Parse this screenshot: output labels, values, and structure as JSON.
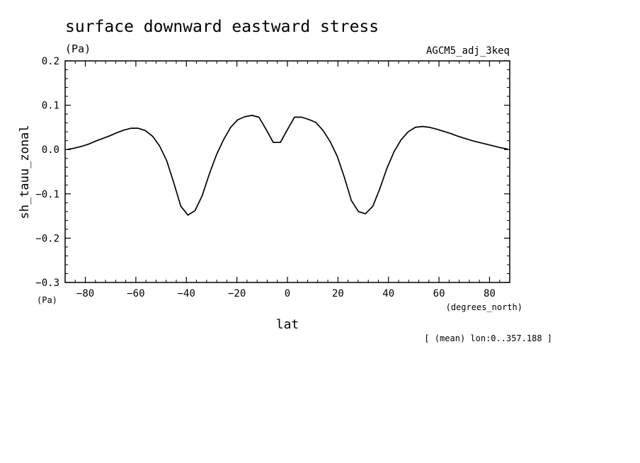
{
  "chart_data": {
    "type": "line",
    "title": "surface downward eastward stress",
    "units_label": "(Pa)",
    "experiment_label": "AGCM5_adj_3keq",
    "ylabel": "sh_tauu_zonal",
    "y_units_corner": "(Pa)",
    "xlabel": "lat",
    "x_units": "(degrees_north)",
    "subset_note": "[ (mean) lon:0..357.188 ]",
    "xlim": [
      -88,
      88
    ],
    "ylim": [
      -0.3,
      0.2
    ],
    "x_ticks": [
      -80,
      -60,
      -40,
      -20,
      0,
      20,
      40,
      60,
      80
    ],
    "x_tick_labels": [
      "−80",
      "−60",
      "−40",
      "−20",
      "0",
      "20",
      "40",
      "60",
      "80"
    ],
    "y_ticks": [
      -0.3,
      -0.2,
      -0.1,
      0.0,
      0.1,
      0.2
    ],
    "y_tick_labels": [
      "−0.3",
      "−0.2",
      "−0.1",
      "0.0",
      "0.1",
      "0.2"
    ],
    "grid": false,
    "series": [
      {
        "x": [
          -87.2,
          -84.4,
          -81.6,
          -78.8,
          -75.9,
          -73.1,
          -70.3,
          -67.5,
          -64.7,
          -61.9,
          -59.1,
          -56.3,
          -53.4,
          -50.6,
          -47.8,
          -45.0,
          -42.2,
          -39.4,
          -36.6,
          -33.8,
          -30.9,
          -28.1,
          -25.3,
          -22.5,
          -19.7,
          -16.9,
          -14.1,
          -11.3,
          -8.4,
          -5.6,
          -2.8,
          0.0,
          2.8,
          5.6,
          8.4,
          11.3,
          14.1,
          16.9,
          19.7,
          22.5,
          25.3,
          28.1,
          30.9,
          33.8,
          36.6,
          39.4,
          42.2,
          45.0,
          47.8,
          50.6,
          53.4,
          56.3,
          59.1,
          61.9,
          64.7,
          67.5,
          70.3,
          73.1,
          75.9,
          78.8,
          81.6,
          84.4,
          87.2
        ],
        "y": [
          0.0,
          0.003,
          0.007,
          0.012,
          0.019,
          0.025,
          0.031,
          0.038,
          0.044,
          0.048,
          0.048,
          0.043,
          0.03,
          0.008,
          -0.025,
          -0.075,
          -0.128,
          -0.148,
          -0.138,
          -0.105,
          -0.055,
          -0.012,
          0.022,
          0.05,
          0.067,
          0.074,
          0.077,
          0.073,
          0.045,
          0.016,
          0.016,
          0.045,
          0.073,
          0.073,
          0.068,
          0.061,
          0.043,
          0.018,
          -0.015,
          -0.062,
          -0.115,
          -0.14,
          -0.145,
          -0.128,
          -0.088,
          -0.042,
          -0.005,
          0.022,
          0.04,
          0.05,
          0.052,
          0.05,
          0.046,
          0.041,
          0.036,
          0.03,
          0.025,
          0.02,
          0.016,
          0.012,
          0.008,
          0.004,
          0.001
        ]
      }
    ]
  }
}
